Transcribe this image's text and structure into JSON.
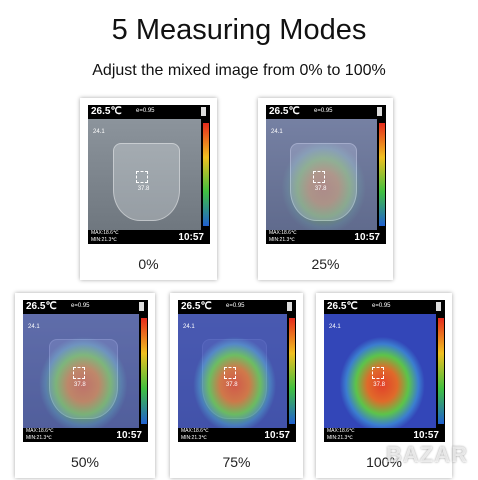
{
  "header": {
    "title": "5 Measuring Modes",
    "subtitle": "Adjust the mixed image from 0% to 100%"
  },
  "screen": {
    "temperature": "26.5℃",
    "emissivity": "e=0.95",
    "spot": "24.1",
    "center": "37.8",
    "max": "MAX:18.6℃",
    "min": "MIN:21.3℃",
    "time": "10:57"
  },
  "panels": [
    {
      "label": "0%"
    },
    {
      "label": "25%"
    },
    {
      "label": "50%"
    },
    {
      "label": "75%"
    },
    {
      "label": "100%"
    }
  ],
  "watermark": "BAZAR"
}
